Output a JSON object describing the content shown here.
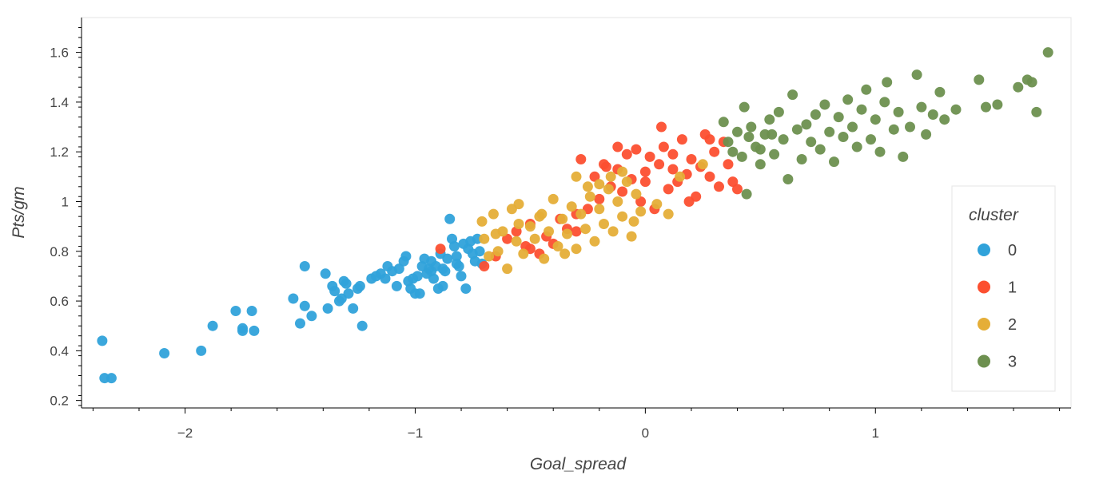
{
  "chart_data": {
    "type": "scatter",
    "title": "",
    "xlabel": "Goal_spread",
    "ylabel": "Pts/gm",
    "xlim": [
      -2.45,
      1.85
    ],
    "ylim": [
      0.17,
      1.74
    ],
    "x_ticks": [
      -2,
      -1,
      0,
      1
    ],
    "x_tick_labels": [
      "−2",
      "−1",
      "0",
      "1"
    ],
    "y_ticks": [
      0.2,
      0.4,
      0.6,
      0.8,
      1,
      1.2,
      1.4,
      1.6
    ],
    "y_tick_labels": [
      "0.2",
      "0.4",
      "0.6",
      "0.8",
      "1",
      "1.2",
      "1.4",
      "1.6"
    ],
    "grid": false,
    "legend": {
      "title": "cluster",
      "placement": "right",
      "entries": [
        {
          "label": "0",
          "color": "#30a2da"
        },
        {
          "label": "1",
          "color": "#fc4f30"
        },
        {
          "label": "2",
          "color": "#e5ae38"
        },
        {
          "label": "3",
          "color": "#6d904f"
        }
      ]
    },
    "series": [
      {
        "name": "0",
        "color": "#30a2da",
        "points": [
          [
            -2.36,
            0.44
          ],
          [
            -2.35,
            0.29
          ],
          [
            -2.32,
            0.29
          ],
          [
            -2.09,
            0.39
          ],
          [
            -1.93,
            0.4
          ],
          [
            -1.88,
            0.5
          ],
          [
            -1.78,
            0.56
          ],
          [
            -1.75,
            0.49
          ],
          [
            -1.75,
            0.48
          ],
          [
            -1.71,
            0.56
          ],
          [
            -1.7,
            0.48
          ],
          [
            -1.53,
            0.61
          ],
          [
            -1.5,
            0.51
          ],
          [
            -1.48,
            0.74
          ],
          [
            -1.48,
            0.58
          ],
          [
            -1.45,
            0.54
          ],
          [
            -1.39,
            0.71
          ],
          [
            -1.38,
            0.57
          ],
          [
            -1.36,
            0.66
          ],
          [
            -1.35,
            0.64
          ],
          [
            -1.33,
            0.6
          ],
          [
            -1.32,
            0.61
          ],
          [
            -1.31,
            0.68
          ],
          [
            -1.3,
            0.67
          ],
          [
            -1.29,
            0.63
          ],
          [
            -1.27,
            0.57
          ],
          [
            -1.25,
            0.65
          ],
          [
            -1.24,
            0.66
          ],
          [
            -1.23,
            0.5
          ],
          [
            -1.19,
            0.69
          ],
          [
            -1.17,
            0.7
          ],
          [
            -1.15,
            0.71
          ],
          [
            -1.13,
            0.69
          ],
          [
            -1.12,
            0.74
          ],
          [
            -1.1,
            0.72
          ],
          [
            -1.08,
            0.66
          ],
          [
            -1.07,
            0.73
          ],
          [
            -1.05,
            0.76
          ],
          [
            -1.04,
            0.78
          ],
          [
            -1.03,
            0.68
          ],
          [
            -1.02,
            0.65
          ],
          [
            -1.01,
            0.69
          ],
          [
            -1.0,
            0.63
          ],
          [
            -0.99,
            0.7
          ],
          [
            -0.98,
            0.63
          ],
          [
            -0.97,
            0.74
          ],
          [
            -0.95,
            0.71
          ],
          [
            -0.94,
            0.73
          ],
          [
            -0.93,
            0.76
          ],
          [
            -0.92,
            0.69
          ],
          [
            -0.91,
            0.74
          ],
          [
            -0.9,
            0.65
          ],
          [
            -0.89,
            0.79
          ],
          [
            -0.88,
            0.66
          ],
          [
            -0.87,
            0.72
          ],
          [
            -0.86,
            0.77
          ],
          [
            -0.85,
            0.93
          ],
          [
            -0.84,
            0.85
          ],
          [
            -0.83,
            0.82
          ],
          [
            -0.82,
            0.78
          ],
          [
            -0.81,
            0.74
          ],
          [
            -0.8,
            0.7
          ],
          [
            -0.79,
            0.83
          ],
          [
            -0.78,
            0.65
          ],
          [
            -0.77,
            0.81
          ],
          [
            -0.76,
            0.84
          ],
          [
            -0.75,
            0.79
          ],
          [
            -0.74,
            0.76
          ],
          [
            -0.73,
            0.85
          ],
          [
            -0.72,
            0.8
          ],
          [
            -0.71,
            0.75
          ],
          [
            -0.93,
            0.72
          ],
          [
            -0.96,
            0.77
          ],
          [
            -0.88,
            0.73
          ],
          [
            -0.82,
            0.75
          ]
        ]
      },
      {
        "name": "1",
        "color": "#fc4f30",
        "points": [
          [
            -0.89,
            0.81
          ],
          [
            -0.7,
            0.74
          ],
          [
            -0.65,
            0.78
          ],
          [
            -0.6,
            0.85
          ],
          [
            -0.56,
            0.88
          ],
          [
            -0.52,
            0.82
          ],
          [
            -0.5,
            0.91
          ],
          [
            -0.46,
            0.79
          ],
          [
            -0.43,
            0.86
          ],
          [
            -0.4,
            0.83
          ],
          [
            -0.37,
            0.93
          ],
          [
            -0.34,
            0.89
          ],
          [
            -0.3,
            0.95
          ],
          [
            -0.28,
            1.17
          ],
          [
            -0.25,
            0.97
          ],
          [
            -0.22,
            1.1
          ],
          [
            -0.2,
            1.01
          ],
          [
            -0.17,
            1.14
          ],
          [
            -0.15,
            1.06
          ],
          [
            -0.12,
            1.13
          ],
          [
            -0.1,
            1.04
          ],
          [
            -0.08,
            1.19
          ],
          [
            -0.06,
            1.09
          ],
          [
            -0.04,
            1.21
          ],
          [
            -0.02,
            1.0
          ],
          [
            0.0,
            1.12
          ],
          [
            0.02,
            1.18
          ],
          [
            0.04,
            0.97
          ],
          [
            0.06,
            1.15
          ],
          [
            0.08,
            1.22
          ],
          [
            0.1,
            1.05
          ],
          [
            0.12,
            1.19
          ],
          [
            0.14,
            1.08
          ],
          [
            0.16,
            1.25
          ],
          [
            0.18,
            1.11
          ],
          [
            0.2,
            1.17
          ],
          [
            0.22,
            1.02
          ],
          [
            0.24,
            1.14
          ],
          [
            0.26,
            1.27
          ],
          [
            0.28,
            1.1
          ],
          [
            0.3,
            1.2
          ],
          [
            0.32,
            1.06
          ],
          [
            0.34,
            1.24
          ],
          [
            0.36,
            1.15
          ],
          [
            0.38,
            1.08
          ],
          [
            0.4,
            1.05
          ],
          [
            0.07,
            1.3
          ],
          [
            -0.12,
            1.22
          ],
          [
            0.19,
            1.0
          ],
          [
            -0.3,
            0.88
          ],
          [
            -0.5,
            0.81
          ],
          [
            0.28,
            1.25
          ],
          [
            0.0,
            1.08
          ],
          [
            -0.18,
            1.15
          ],
          [
            0.12,
            1.13
          ]
        ]
      },
      {
        "name": "2",
        "color": "#e5ae38",
        "points": [
          [
            -0.71,
            0.92
          ],
          [
            -0.7,
            0.85
          ],
          [
            -0.68,
            0.78
          ],
          [
            -0.66,
            0.95
          ],
          [
            -0.64,
            0.8
          ],
          [
            -0.62,
            0.88
          ],
          [
            -0.6,
            0.73
          ],
          [
            -0.58,
            0.97
          ],
          [
            -0.56,
            0.84
          ],
          [
            -0.55,
            0.99
          ],
          [
            -0.53,
            0.79
          ],
          [
            -0.5,
            0.9
          ],
          [
            -0.48,
            0.85
          ],
          [
            -0.46,
            0.94
          ],
          [
            -0.44,
            0.77
          ],
          [
            -0.42,
            0.88
          ],
          [
            -0.4,
            1.01
          ],
          [
            -0.38,
            0.82
          ],
          [
            -0.36,
            0.93
          ],
          [
            -0.34,
            0.87
          ],
          [
            -0.32,
            0.98
          ],
          [
            -0.3,
            0.81
          ],
          [
            -0.28,
            0.95
          ],
          [
            -0.26,
            0.89
          ],
          [
            -0.24,
            1.02
          ],
          [
            -0.22,
            0.84
          ],
          [
            -0.2,
            0.97
          ],
          [
            -0.18,
            0.91
          ],
          [
            -0.16,
            1.05
          ],
          [
            -0.14,
            0.88
          ],
          [
            -0.12,
            1.0
          ],
          [
            -0.1,
            0.94
          ],
          [
            -0.08,
            1.08
          ],
          [
            -0.06,
            0.86
          ],
          [
            -0.04,
            1.03
          ],
          [
            -0.02,
            0.96
          ],
          [
            -0.3,
            1.1
          ],
          [
            -0.25,
            1.06
          ],
          [
            -0.2,
            1.07
          ],
          [
            -0.15,
            1.1
          ],
          [
            -0.1,
            1.12
          ],
          [
            -0.45,
            0.95
          ],
          [
            -0.55,
            0.91
          ],
          [
            -0.65,
            0.87
          ],
          [
            -0.35,
            0.79
          ],
          [
            0.1,
            0.95
          ],
          [
            0.15,
            1.1
          ],
          [
            0.25,
            1.15
          ],
          [
            0.05,
            0.99
          ],
          [
            -0.05,
            0.92
          ]
        ]
      },
      {
        "name": "3",
        "color": "#6d904f",
        "points": [
          [
            0.34,
            1.32
          ],
          [
            0.36,
            1.24
          ],
          [
            0.38,
            1.2
          ],
          [
            0.4,
            1.28
          ],
          [
            0.42,
            1.18
          ],
          [
            0.43,
            1.38
          ],
          [
            0.44,
            1.03
          ],
          [
            0.45,
            1.26
          ],
          [
            0.46,
            1.3
          ],
          [
            0.48,
            1.22
          ],
          [
            0.5,
            1.15
          ],
          [
            0.52,
            1.27
          ],
          [
            0.54,
            1.33
          ],
          [
            0.56,
            1.19
          ],
          [
            0.58,
            1.36
          ],
          [
            0.6,
            1.25
          ],
          [
            0.62,
            1.09
          ],
          [
            0.64,
            1.43
          ],
          [
            0.66,
            1.29
          ],
          [
            0.68,
            1.17
          ],
          [
            0.7,
            1.31
          ],
          [
            0.72,
            1.24
          ],
          [
            0.74,
            1.35
          ],
          [
            0.76,
            1.21
          ],
          [
            0.78,
            1.39
          ],
          [
            0.8,
            1.28
          ],
          [
            0.82,
            1.16
          ],
          [
            0.84,
            1.34
          ],
          [
            0.86,
            1.26
          ],
          [
            0.88,
            1.41
          ],
          [
            0.9,
            1.3
          ],
          [
            0.92,
            1.22
          ],
          [
            0.94,
            1.37
          ],
          [
            0.96,
            1.45
          ],
          [
            0.98,
            1.25
          ],
          [
            1.0,
            1.33
          ],
          [
            1.02,
            1.2
          ],
          [
            1.04,
            1.4
          ],
          [
            1.05,
            1.48
          ],
          [
            1.08,
            1.29
          ],
          [
            1.1,
            1.36
          ],
          [
            1.12,
            1.18
          ],
          [
            1.15,
            1.3
          ],
          [
            1.18,
            1.51
          ],
          [
            1.2,
            1.38
          ],
          [
            1.22,
            1.27
          ],
          [
            1.25,
            1.35
          ],
          [
            1.28,
            1.44
          ],
          [
            1.3,
            1.33
          ],
          [
            1.35,
            1.37
          ],
          [
            1.45,
            1.49
          ],
          [
            1.48,
            1.38
          ],
          [
            1.53,
            1.39
          ],
          [
            1.62,
            1.46
          ],
          [
            1.66,
            1.49
          ],
          [
            1.68,
            1.48
          ],
          [
            1.7,
            1.36
          ],
          [
            1.75,
            1.6
          ],
          [
            0.5,
            1.21
          ],
          [
            0.55,
            1.27
          ]
        ]
      }
    ]
  }
}
